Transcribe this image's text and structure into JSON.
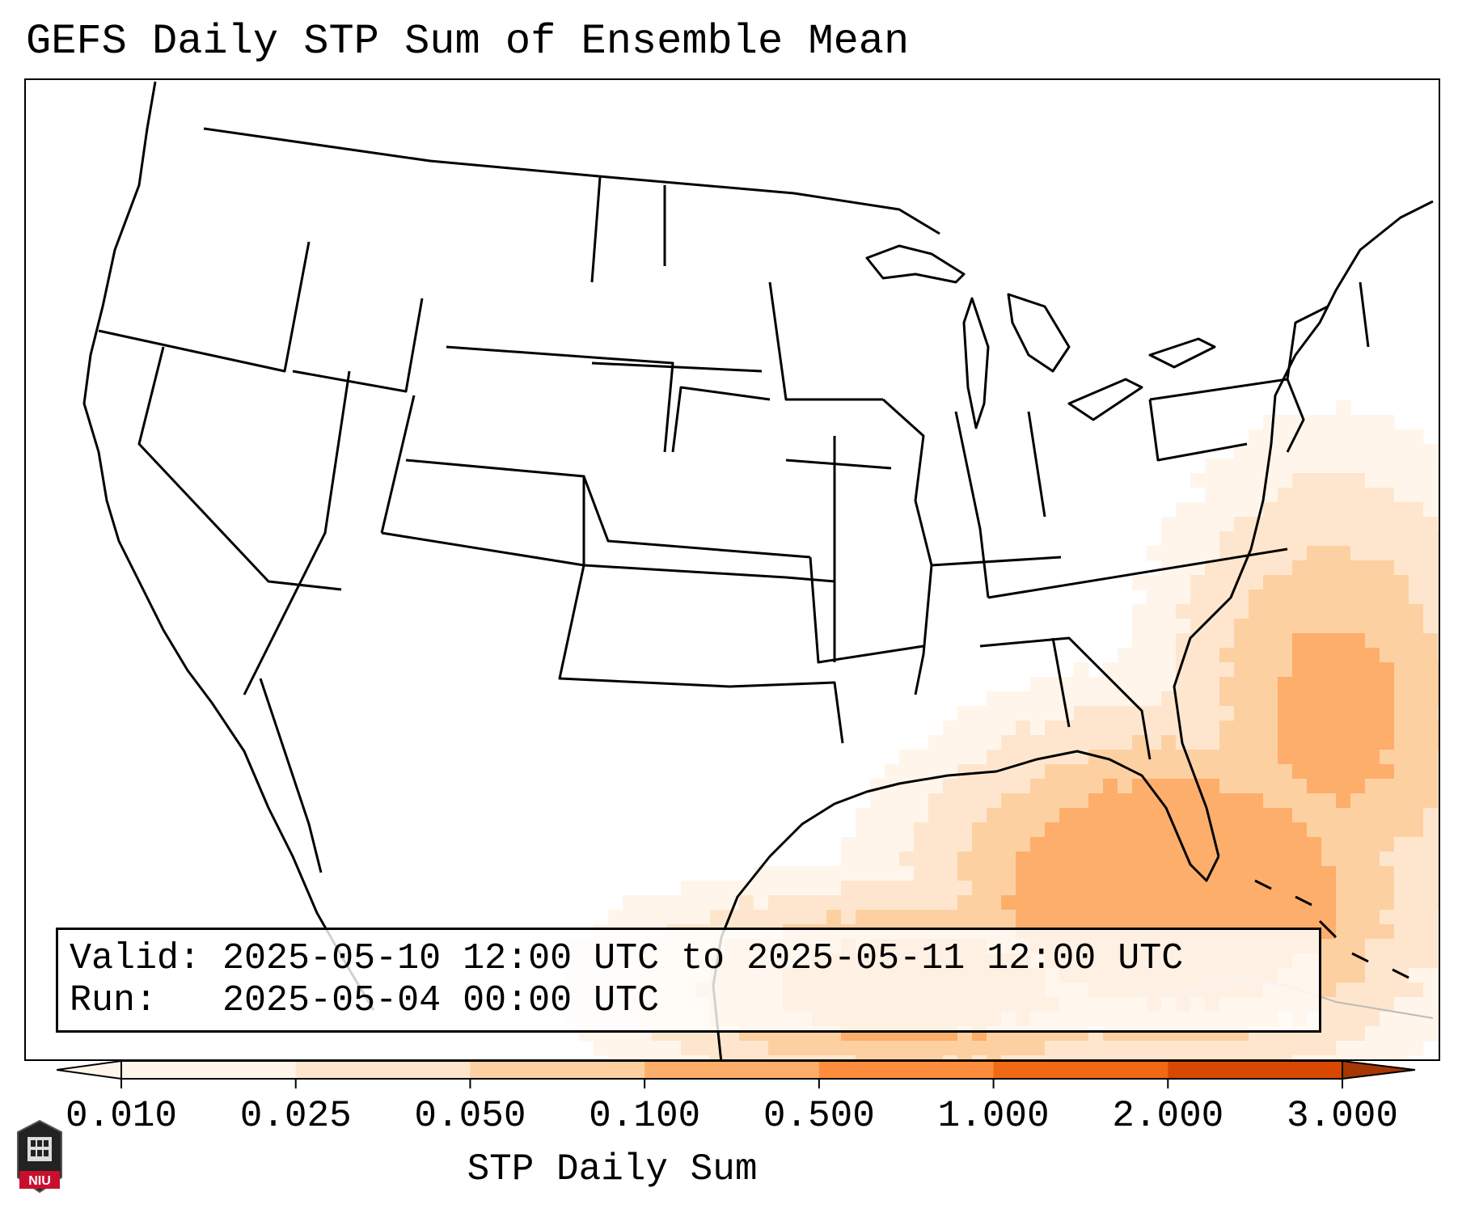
{
  "title": "GEFS Daily STP Sum of Ensemble Mean",
  "info": {
    "valid_label": "Valid:",
    "valid_text": "2025-05-10 12:00 UTC to 2025-05-11 12:00 UTC",
    "run_label": "Run:",
    "run_text": "2025-05-04 00:00 UTC"
  },
  "colorbar": {
    "label": "STP Daily Sum",
    "ticks": [
      "0.010",
      "0.025",
      "0.050",
      "0.100",
      "0.500",
      "1.000",
      "2.000",
      "3.000"
    ],
    "colors": [
      "#fff5eb",
      "#fee6ce",
      "#fdd0a2",
      "#fdae6b",
      "#fd8d3c",
      "#f16913",
      "#d94801",
      "#a63603"
    ]
  },
  "logo": {
    "text": "NIU"
  },
  "colors": {
    "accent": "#fdae6b",
    "logo_red": "#c8102e"
  }
}
